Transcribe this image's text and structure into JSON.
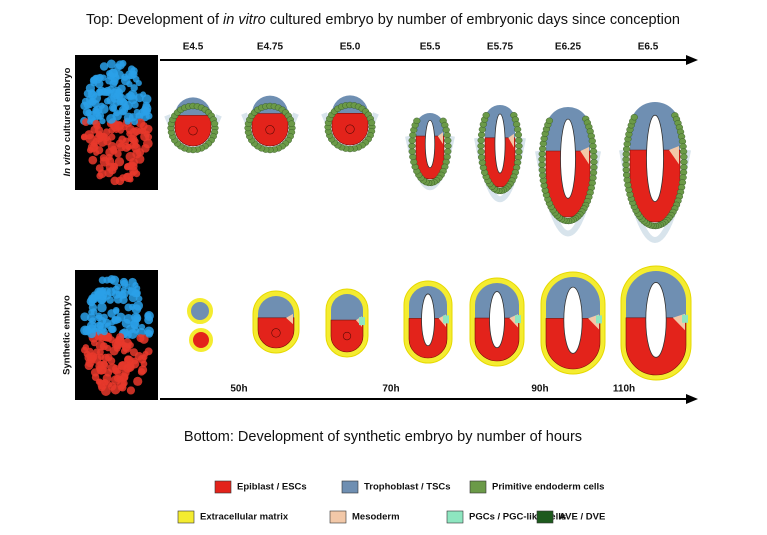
{
  "top_title": {
    "before": "Top: Development of ",
    "italic": "in vitro",
    "after": " cultured embryo by number of embryonic days since conception"
  },
  "top_side_label": {
    "italic": "In vitro",
    "after": " cultured embryo"
  },
  "top_timeline": [
    "E4.5",
    "E4.75",
    "E5.0",
    "E5.5",
    "E5.75",
    "E6.25",
    "E6.5"
  ],
  "bottom_side_label": "Synthetic embryo",
  "bottom_timeline": [
    "50h",
    "70h",
    "90h",
    "110h"
  ],
  "bottom_title": "Bottom: Development of synthetic embryo by number of hours",
  "legend": [
    {
      "name": "Epiblast / ESCs",
      "color": "#e3231b"
    },
    {
      "name": "Trophoblast / TSCs",
      "color": "#6f8fb2"
    },
    {
      "name": "Primitive endoderm cells",
      "color": "#6b9a48"
    },
    {
      "name": "Extracellular matrix",
      "color": "#f4ec30"
    },
    {
      "name": "Mesoderm",
      "color": "#f2c8a8"
    },
    {
      "name": "PGCs / PGC-like cells",
      "color": "#8ee6c0"
    },
    {
      "name": "AVE / DVE",
      "color": "#1d5a1d"
    }
  ]
}
